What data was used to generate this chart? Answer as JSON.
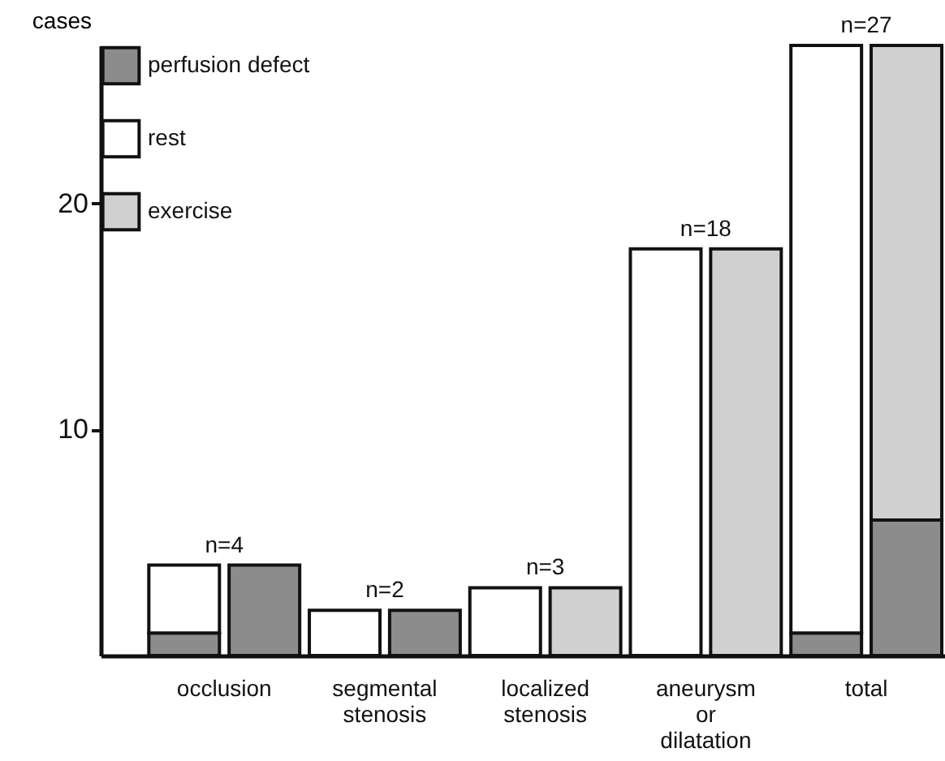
{
  "chart_data": {
    "type": "bar",
    "ylabel": "cases",
    "categories": [
      "occlusion",
      null,
      "segmental stenosis",
      null,
      "localized stenosis",
      null,
      "aneurysm or dilatation",
      null,
      "total",
      null
    ],
    "stacked": true,
    "series": [
      {
        "name": "perfusion defect",
        "color": "#8c8c8c",
        "values": [
          1,
          4,
          null,
          2,
          null,
          null,
          null,
          null,
          1,
          6
        ]
      },
      {
        "name": "rest",
        "color": "#ffffff",
        "values": [
          3,
          null,
          2,
          null,
          3,
          null,
          18,
          null,
          26,
          null
        ]
      },
      {
        "name": "exercise",
        "color": "#d0d0d0",
        "values": [
          null,
          null,
          null,
          null,
          null,
          3,
          null,
          18,
          null,
          21
        ]
      }
    ],
    "totals": [
      "n=4",
      null,
      "n=2",
      null,
      "n=3",
      null,
      "n=18",
      null,
      "n=27",
      null
    ],
    "ylim": [
      0,
      27
    ],
    "yticks": [
      10,
      20
    ],
    "legend": "top left"
  }
}
